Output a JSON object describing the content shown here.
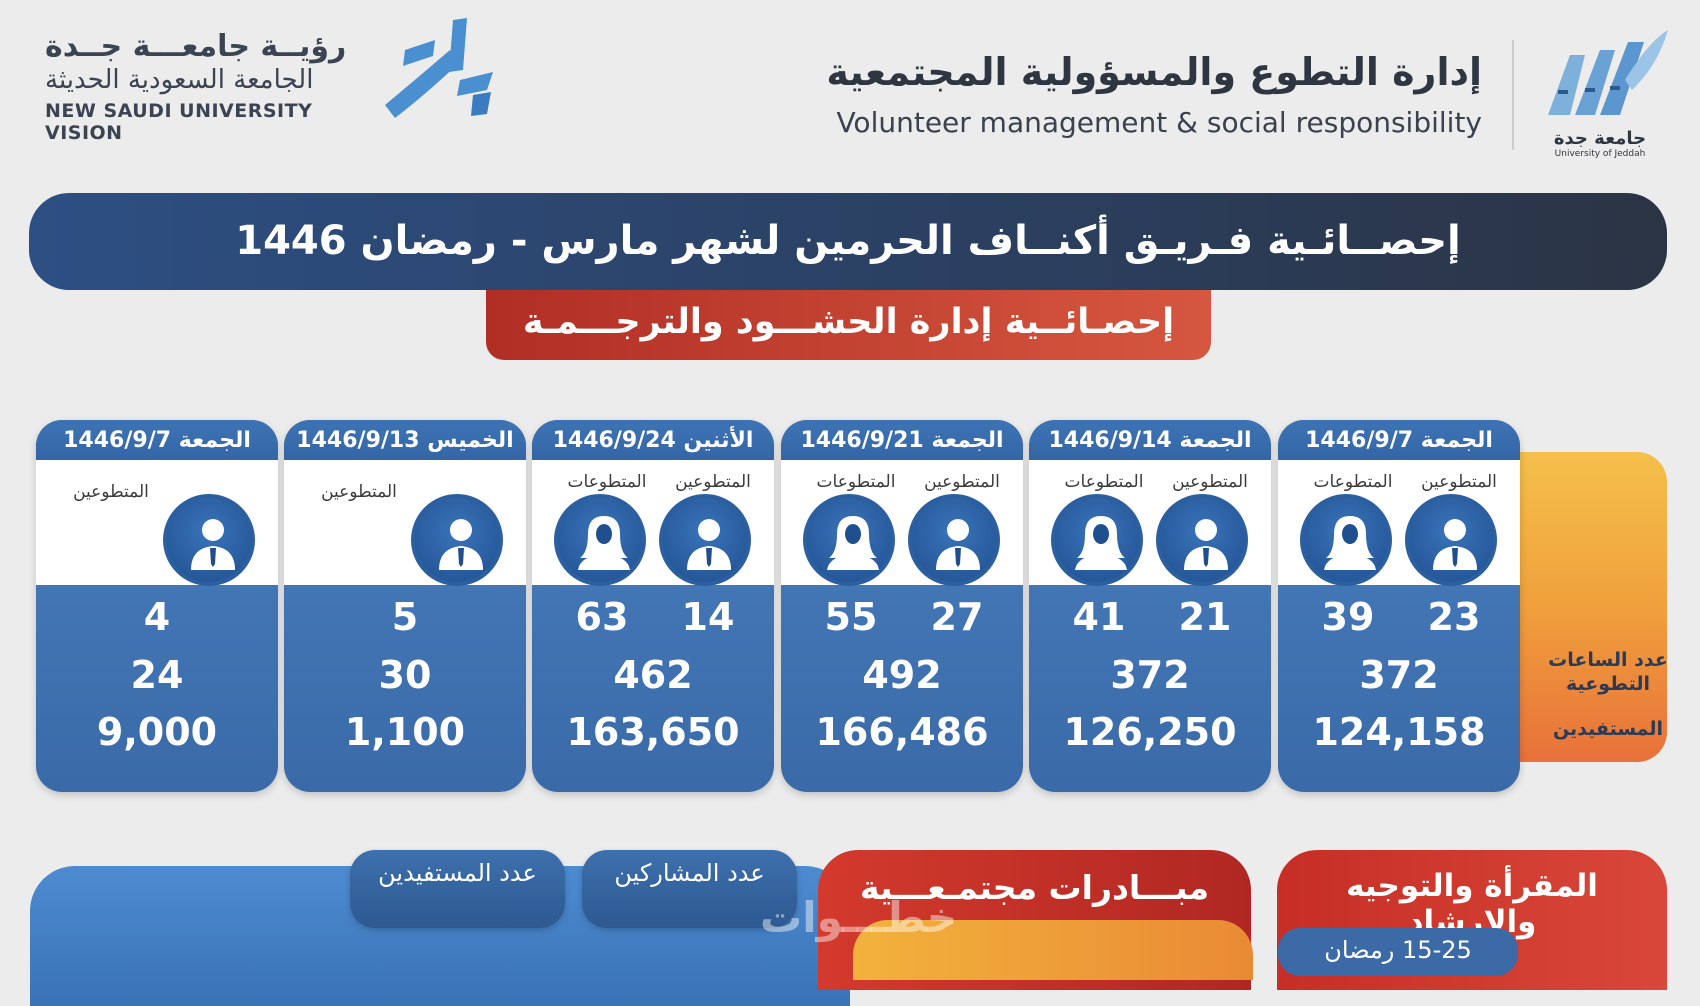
{
  "header": {
    "vision_line1": "رؤيــة جامعـــة جــدة",
    "vision_line2": "الجامعة السعودية الحديثة",
    "vision_line3": "NEW SAUDI UNIVERSITY VISION",
    "dept_ar": "إدارة التطوع والمسؤولية المجتمعية",
    "dept_en": "Volunteer management & social responsibility",
    "uni_ar": "جامعة جدة",
    "uni_en": "University of Jeddah"
  },
  "title": "إحصــائـية فـريـق أكنــاف الحرمين لشهر مارس - رمضان 1446",
  "subtitle": "إحصـائــية إدارة الحشـــود والترجـــمـة",
  "side_labels": {
    "hours": "عدد الساعات التطوعية",
    "beneficiaries": "المستفيدين"
  },
  "cards": [
    {
      "date": "الجمعة 1446/9/7",
      "male_label": "المتطوعين",
      "female_label": "المتطوعات",
      "male": "23",
      "female": "39",
      "hours": "372",
      "beneficiaries": "124,158"
    },
    {
      "date": "الجمعة 1446/9/14",
      "male_label": "المتطوعين",
      "female_label": "المتطوعات",
      "male": "21",
      "female": "41",
      "hours": "372",
      "beneficiaries": "126,250"
    },
    {
      "date": "الجمعة 1446/9/21",
      "male_label": "المتطوعين",
      "female_label": "المتطوعات",
      "male": "27",
      "female": "55",
      "hours": "492",
      "beneficiaries": "166,486"
    },
    {
      "date": "الأثنين 1446/9/24",
      "male_label": "المتطوعين",
      "female_label": "المتطوعات",
      "male": "14",
      "female": "63",
      "hours": "462",
      "beneficiaries": "163,650"
    },
    {
      "date": "الخميس 1446/9/13",
      "male_label": "المتطوعين",
      "male": "5",
      "hours": "30",
      "beneficiaries": "1,100"
    },
    {
      "date": "الجمعة 1446/9/7",
      "male_label": "المتطوعين",
      "male": "4",
      "hours": "24",
      "beneficiaries": "9,000"
    }
  ],
  "bottom": {
    "pill_beneficiaries": "عدد المستفيدين",
    "pill_participants": "عدد المشاركين",
    "initiatives": "مبـــادرات مجتمـعـــية",
    "magraa": "المقرأة والتوجيه والإرشاد",
    "date_range": "15-25 رمضان",
    "watermark": "خطـــوات"
  },
  "colors": {
    "navy": "#2b3f5f",
    "card_blue": "#3f74b5",
    "red": "#c0332a",
    "orange": "#f0a03c"
  }
}
